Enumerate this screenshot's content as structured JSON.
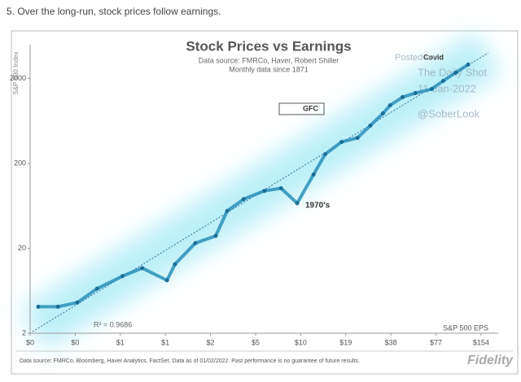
{
  "heading": "5. Over the long-run, stock prices follow earnings.",
  "footer": "Data source: FMRCo, Bloomberg, Haver Analytics, FactSet. Data as of 01/02/2022. Past performance is no guarantee of future results.",
  "logo": "Fidelity",
  "chart_data": {
    "type": "line",
    "title": "Stock Prices vs Earnings",
    "subtitle": [
      "Data source: FMRCo, Haver, Robert Shiller",
      "Monthly data since 1871"
    ],
    "x_label": "S&P 500 EPS",
    "y_label": "S&P 500 Index",
    "x_log": true,
    "y_log": true,
    "color": "#2a8fb8",
    "annotations": [
      "GFC",
      "1970's",
      "Covid",
      "R² = 0.9686"
    ],
    "watermark": [
      "Posted on",
      "The Daily Shot",
      "11-Jan-2022",
      "@SoberLook"
    ],
    "x": [
      0.17,
      0.23,
      0.31,
      0.42,
      0.62,
      0.84,
      1.23,
      1.39,
      1.9,
      2.6,
      3.1,
      4.0,
      5.5,
      7.1,
      9.1,
      11.7,
      14,
      18,
      23,
      28,
      34,
      38,
      46,
      56,
      72,
      86,
      104,
      126
    ],
    "values": [
      4.1,
      4.1,
      4.6,
      6.7,
      9.4,
      11.7,
      8.4,
      13,
      23,
      28,
      55,
      76,
      95,
      102,
      68,
      148,
      257,
      358,
      400,
      557,
      776,
      968,
      1206,
      1346,
      1504,
      1876,
      2340,
      2918
    ],
    "xlim": [
      0.15,
      200
    ],
    "ylim": [
      2,
      5000
    ],
    "xticks": [
      {
        "value": 0.15,
        "label": "$0"
      },
      {
        "value": 0.3,
        "label": "$0"
      },
      {
        "value": 0.6,
        "label": "$1"
      },
      {
        "value": 1.2,
        "label": "$1"
      },
      {
        "value": 2.4,
        "label": "$2"
      },
      {
        "value": 4.8,
        "label": "$5"
      },
      {
        "value": 9.6,
        "label": "$10"
      },
      {
        "value": 19.2,
        "label": "$19"
      },
      {
        "value": 38.4,
        "label": "$38"
      },
      {
        "value": 76.8,
        "label": "$77"
      },
      {
        "value": 153.6,
        "label": "$154"
      }
    ],
    "yticks": [
      2,
      20,
      200,
      2000
    ]
  }
}
